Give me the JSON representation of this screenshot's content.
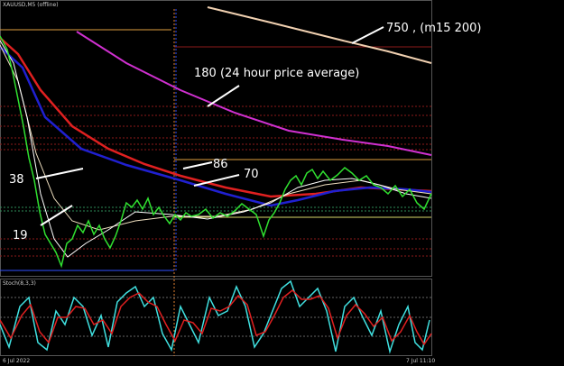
{
  "header": {
    "symbol": "XAUUSD,M5 (offline)"
  },
  "annotations": [
    "750 , (m15 200)",
    "180 (24 hour price average)",
    "86",
    "70",
    "38",
    "19"
  ],
  "indicator": {
    "title": "Stoch(8,3,3)"
  },
  "time_axis": {
    "start": "6 Jul 2022",
    "end": "7 Jul 11:10"
  }
}
